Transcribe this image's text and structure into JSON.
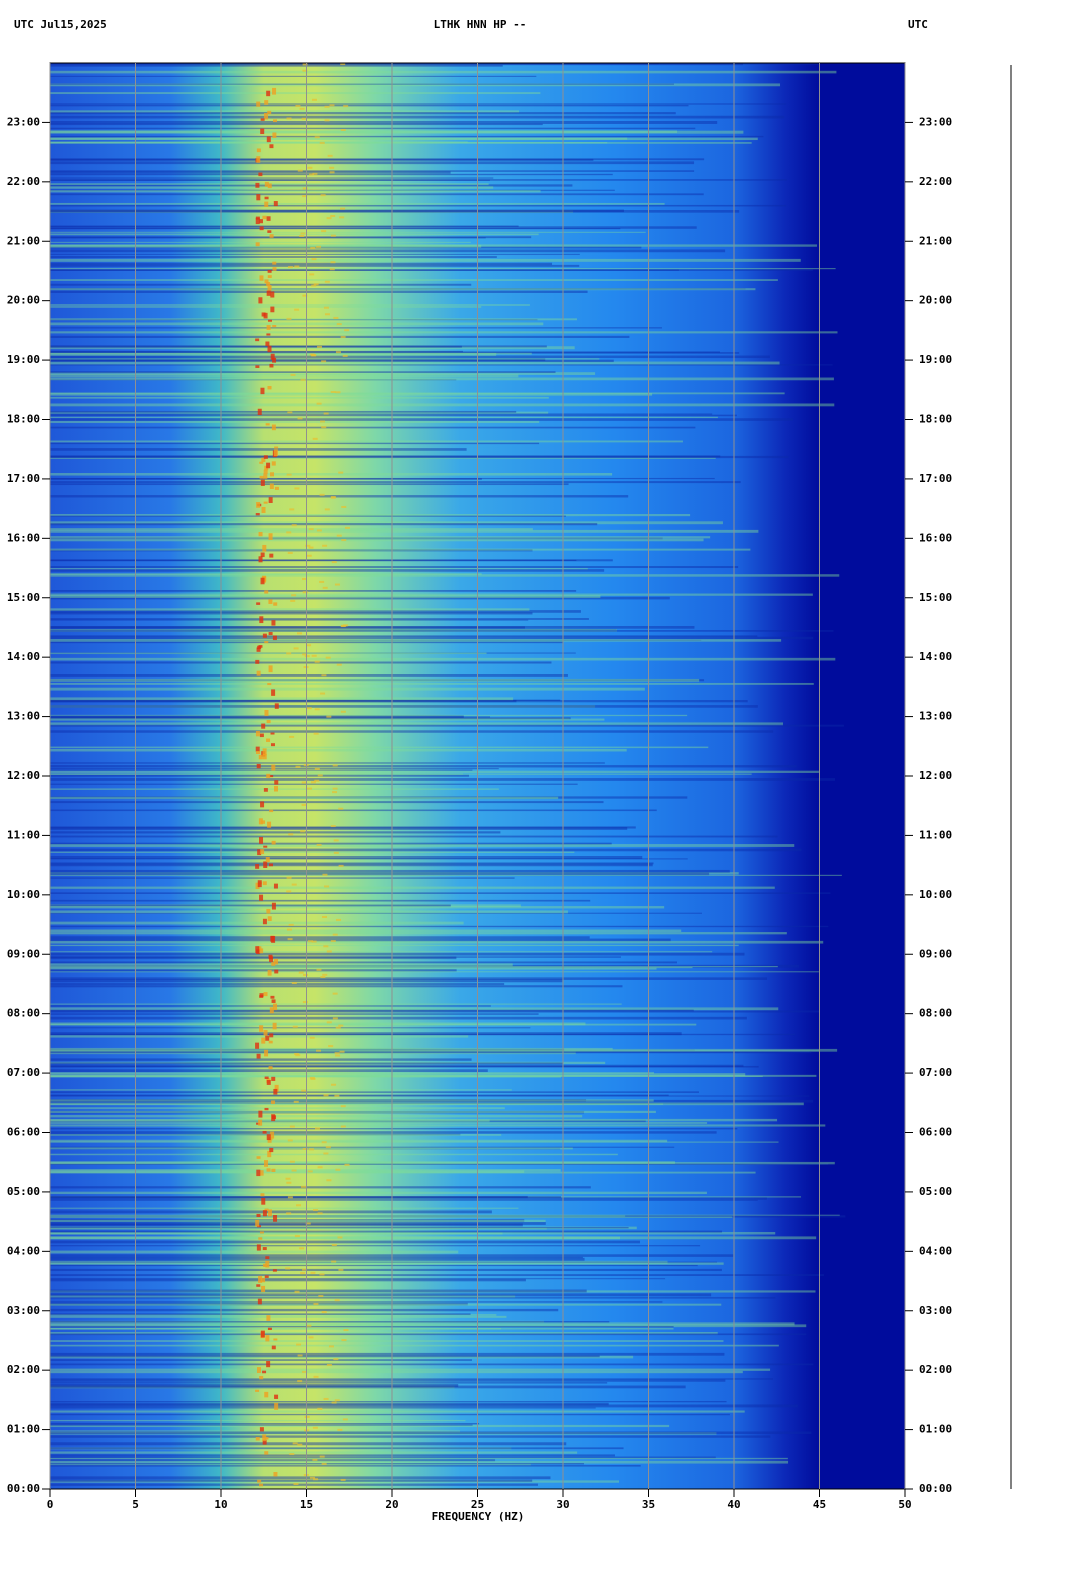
{
  "chart_data": {
    "type": "spectrogram",
    "title": "LTHK HNN HP --",
    "left_header": "UTC  Jul15,2025",
    "right_header": "UTC",
    "xlabel": "FREQUENCY (HZ)",
    "xlim": [
      0,
      50
    ],
    "xticks": [
      0,
      5,
      10,
      15,
      20,
      25,
      30,
      35,
      40,
      45,
      50
    ],
    "ylim": [
      0,
      24
    ],
    "yticks": [
      {
        "value": 0,
        "label": "00:00"
      },
      {
        "value": 1,
        "label": "01:00"
      },
      {
        "value": 2,
        "label": "02:00"
      },
      {
        "value": 3,
        "label": "03:00"
      },
      {
        "value": 4,
        "label": "04:00"
      },
      {
        "value": 5,
        "label": "05:00"
      },
      {
        "value": 6,
        "label": "06:00"
      },
      {
        "value": 7,
        "label": "07:00"
      },
      {
        "value": 8,
        "label": "08:00"
      },
      {
        "value": 9,
        "label": "09:00"
      },
      {
        "value": 10,
        "label": "10:00"
      },
      {
        "value": 11,
        "label": "11:00"
      },
      {
        "value": 12,
        "label": "12:00"
      },
      {
        "value": 13,
        "label": "13:00"
      },
      {
        "value": 14,
        "label": "14:00"
      },
      {
        "value": 15,
        "label": "15:00"
      },
      {
        "value": 16,
        "label": "16:00"
      },
      {
        "value": 17,
        "label": "17:00"
      },
      {
        "value": 18,
        "label": "18:00"
      },
      {
        "value": 19,
        "label": "19:00"
      },
      {
        "value": 20,
        "label": "20:00"
      },
      {
        "value": 21,
        "label": "21:00"
      },
      {
        "value": 22,
        "label": "22:00"
      },
      {
        "value": 23,
        "label": "23:00"
      }
    ],
    "grid": true
  }
}
